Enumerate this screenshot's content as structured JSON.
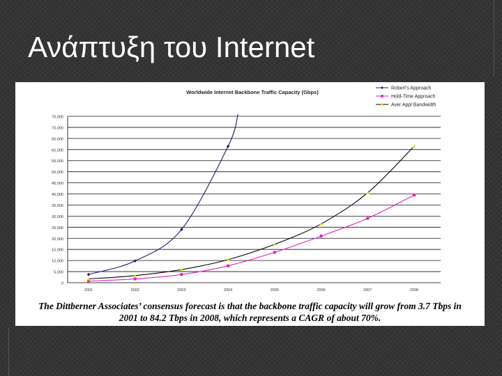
{
  "slide": {
    "title": "Ανάπτυξη του Internet",
    "caption_line1": "The Dittberner Associates’ consensus forecast is that the backbone traffic capacity will grow from 3.7 Tbps in",
    "caption_line2": "2001 to 84.2 Tbps in 2008, which represents a CAGR of about 70%.",
    "colors": {
      "background": "#353535",
      "title": "#ffffff"
    }
  },
  "chart_data": {
    "type": "line",
    "title": "Worldwide Internet Backbone Traffic Capacity (Gbps)",
    "xlabel": "",
    "ylabel": "",
    "categories": [
      "2001",
      "2002",
      "2003",
      "2004",
      "2005",
      "2006",
      "2007",
      "2008"
    ],
    "ylim": [
      0,
      75000
    ],
    "yticks": [
      "0",
      "5,000",
      "10,000",
      "15,000",
      "20,000",
      "25,000",
      "30,000",
      "35,000",
      "40,000",
      "45,000",
      "50,000",
      "55,000",
      "60,000",
      "65,000",
      "70,000",
      "75,000"
    ],
    "grid": true,
    "legend_position": "top-right",
    "series": [
      {
        "name": "Robert's Approach",
        "color": "#1a1a6e",
        "marker": "diamond",
        "values": [
          3700,
          9800,
          24000,
          61500,
          null,
          null,
          null,
          null
        ],
        "extends_above_axis_after": "2004"
      },
      {
        "name": "Hold-Time Approach",
        "color": "#e020c0",
        "marker": "square",
        "values": [
          700,
          1700,
          3700,
          7600,
          13700,
          21000,
          29000,
          39500
        ]
      },
      {
        "name": "Aver Appl Bandwidth",
        "color": "#000000",
        "marker": "triangle",
        "marker_color": "#e8e000",
        "values": [
          1700,
          3200,
          5900,
          10400,
          17300,
          26500,
          40500,
          61500
        ]
      }
    ]
  }
}
